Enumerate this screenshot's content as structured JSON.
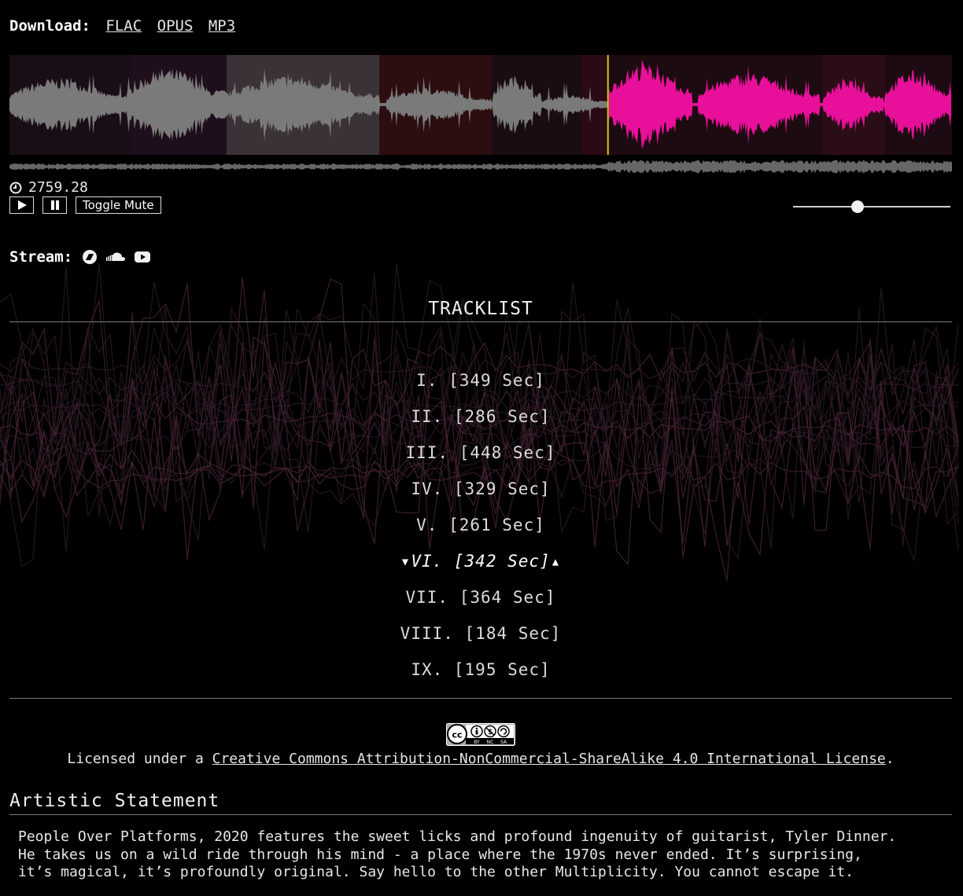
{
  "download": {
    "label": "Download:",
    "formats": [
      "FLAC",
      "OPUS",
      "MP3"
    ]
  },
  "player": {
    "current_time": "2759.28",
    "play_icon": "play-icon",
    "pause_icon": "pause-icon",
    "mute_label": "Toggle Mute",
    "volume_fraction": 0.41,
    "playhead_fraction": 0.635,
    "colors": {
      "played": "#7a7a7a",
      "unplayed": "#e8109a",
      "playhead": "#d8c41c"
    }
  },
  "stream": {
    "label": "Stream:",
    "services": [
      "bandcamp-icon",
      "soundcloud-icon",
      "youtube-icon"
    ]
  },
  "tracklist": {
    "title": "TRACKLIST",
    "tracks": [
      {
        "label": "I. [349 Sec]",
        "active": false
      },
      {
        "label": "II. [286 Sec]",
        "active": false
      },
      {
        "label": "III. [448 Sec]",
        "active": false
      },
      {
        "label": "IV. [329 Sec]",
        "active": false
      },
      {
        "label": "V. [261 Sec]",
        "active": false
      },
      {
        "label": "▾VI. [342 Sec]▴",
        "active": true
      },
      {
        "label": "VII. [364 Sec]",
        "active": false
      },
      {
        "label": "VIII. [184 Sec]",
        "active": false
      },
      {
        "label": "IX. [195 Sec]",
        "active": false
      }
    ]
  },
  "license": {
    "badge": "cc-by-nc-sa-icon",
    "prefix": "Licensed under a ",
    "link_text": "Creative Commons Attribution-NonCommercial-ShareAlike 4.0 International License",
    "suffix": "."
  },
  "statement": {
    "title": "Artistic Statement",
    "lines": [
      "People Over Platforms, 2020 features the sweet licks and profound ingenuity of guitarist, Tyler Dinner.",
      "He takes us on a wild ride through his mind - a place where the 1970s never ended. It’s surprising,",
      "it’s magical, it’s profoundly original. Say hello to the other Multiplicity. You cannot escape it."
    ]
  }
}
